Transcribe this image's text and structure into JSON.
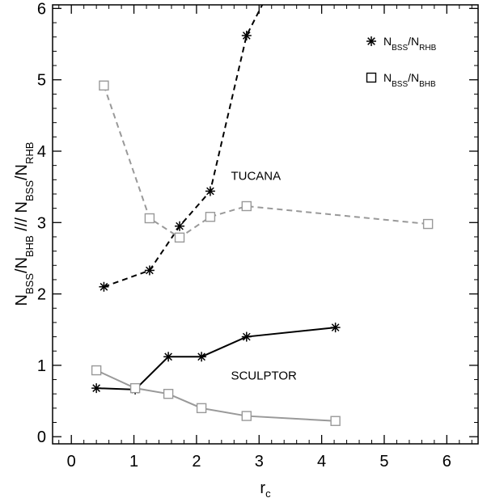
{
  "chart_data": {
    "type": "line",
    "xlim": [
      -0.3,
      6.5
    ],
    "ylim": [
      -0.1,
      6.05
    ],
    "xticks": [
      0,
      1,
      2,
      3,
      4,
      5,
      6
    ],
    "yticks": [
      0,
      1,
      2,
      3,
      4,
      5,
      6
    ],
    "xlabel": {
      "main": "r",
      "sub": "c"
    },
    "ylabel": {
      "parts": [
        {
          "t": "N",
          "s": "n"
        },
        {
          "t": "BSS",
          "s": "sub"
        },
        {
          "t": "/N",
          "s": "n"
        },
        {
          "t": "BHB",
          "s": "sub"
        },
        {
          "t": "  ///  ",
          "s": "n"
        },
        {
          "t": "N",
          "s": "n"
        },
        {
          "t": "BSS",
          "s": "sub"
        },
        {
          "t": "/N",
          "s": "n"
        },
        {
          "t": "RHB",
          "s": "sub"
        }
      ]
    },
    "annotations": [
      {
        "text": "TUCANA",
        "x": 2.55,
        "y": 3.6
      },
      {
        "text": "SCULPTOR",
        "x": 2.55,
        "y": 0.8
      }
    ],
    "legend": {
      "placement": "top-right",
      "entries": [
        {
          "marker": "asterisk",
          "parts": [
            {
              "t": "N",
              "s": "n"
            },
            {
              "t": "BSS",
              "s": "sub"
            },
            {
              "t": "/N",
              "s": "n"
            },
            {
              "t": "RHB",
              "s": "sub"
            }
          ]
        },
        {
          "marker": "square",
          "parts": [
            {
              "t": "N",
              "s": "n"
            },
            {
              "t": "BSS",
              "s": "sub"
            },
            {
              "t": "/N",
              "s": "n"
            },
            {
              "t": "BHB",
              "s": "sub"
            }
          ]
        }
      ]
    },
    "series": [
      {
        "group": "Tucana",
        "ratio": "N_BSS/N_RHB",
        "marker": "asterisk",
        "color": "#000000",
        "line": "dashed",
        "x": [
          0.52,
          1.25,
          1.73,
          2.22,
          2.8,
          3.05
        ],
        "y": [
          2.1,
          2.33,
          2.95,
          3.44,
          5.62,
          6.05
        ]
      },
      {
        "group": "Tucana",
        "ratio": "N_BSS/N_BHB",
        "marker": "square",
        "color": "#999999",
        "line": "dashed",
        "x": [
          0.52,
          1.25,
          1.73,
          2.22,
          2.8,
          5.7
        ],
        "y": [
          4.92,
          3.06,
          2.79,
          3.08,
          3.23,
          2.98
        ]
      },
      {
        "group": "Sculptor",
        "ratio": "N_BSS/N_RHB",
        "marker": "asterisk",
        "color": "#000000",
        "line": "solid",
        "x": [
          0.4,
          1.02,
          1.55,
          2.08,
          2.8,
          4.22
        ],
        "y": [
          0.68,
          0.66,
          1.12,
          1.12,
          1.4,
          1.53
        ]
      },
      {
        "group": "Sculptor",
        "ratio": "N_BSS/N_BHB",
        "marker": "square",
        "color": "#999999",
        "line": "solid",
        "x": [
          0.4,
          1.02,
          1.55,
          2.08,
          2.8,
          4.22
        ],
        "y": [
          0.93,
          0.68,
          0.6,
          0.4,
          0.29,
          0.22
        ]
      }
    ],
    "marker_visible_count": [
      5,
      6,
      6,
      6
    ]
  }
}
